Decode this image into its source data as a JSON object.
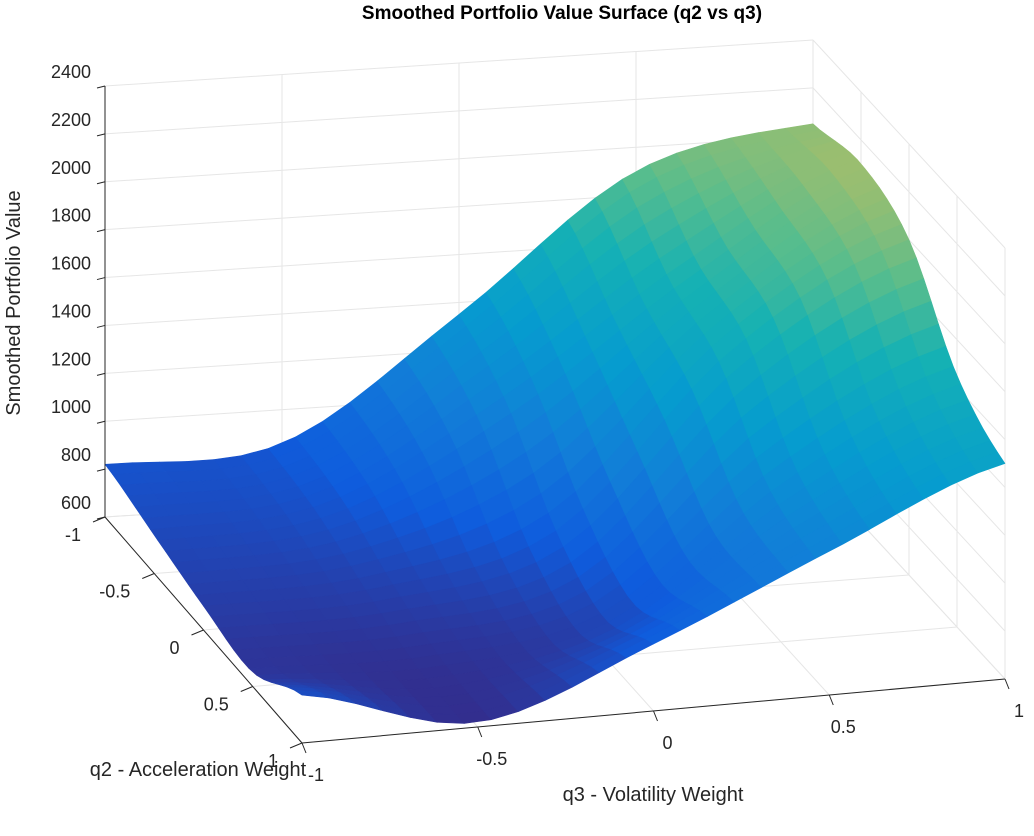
{
  "chart_data": {
    "type": "surface",
    "title": "Smoothed Portfolio Value Surface (q2 vs q3)",
    "xlabel": "q3 - Volatility Weight",
    "ylabel": "q2 - Acceleration Weight",
    "zlabel": "Smoothed Portfolio Value",
    "xlim": [
      -1,
      1
    ],
    "ylim": [
      -1,
      1
    ],
    "zlim": [
      600,
      2400
    ],
    "x_ticks": [
      "-1",
      "-0.5",
      "0",
      "0.5",
      "1"
    ],
    "y_ticks": [
      "-1",
      "-0.5",
      "0",
      "0.5",
      "1"
    ],
    "z_ticks": [
      "600",
      "800",
      "1000",
      "1200",
      "1400",
      "1600",
      "1800",
      "2000",
      "2200",
      "2400"
    ],
    "grid": true,
    "colormap": "parula",
    "q2": [
      -1,
      -0.5,
      0,
      0.5,
      1
    ],
    "q3": [
      -1,
      -0.5,
      0,
      0.5,
      1
    ],
    "values": [
      [
        820,
        860,
        1350,
        1900,
        2050
      ],
      [
        760,
        820,
        1200,
        1700,
        2100
      ],
      [
        700,
        720,
        900,
        1600,
        2000
      ],
      [
        660,
        640,
        760,
        1300,
        1650
      ],
      [
        800,
        620,
        880,
        1200,
        1500
      ]
    ]
  }
}
